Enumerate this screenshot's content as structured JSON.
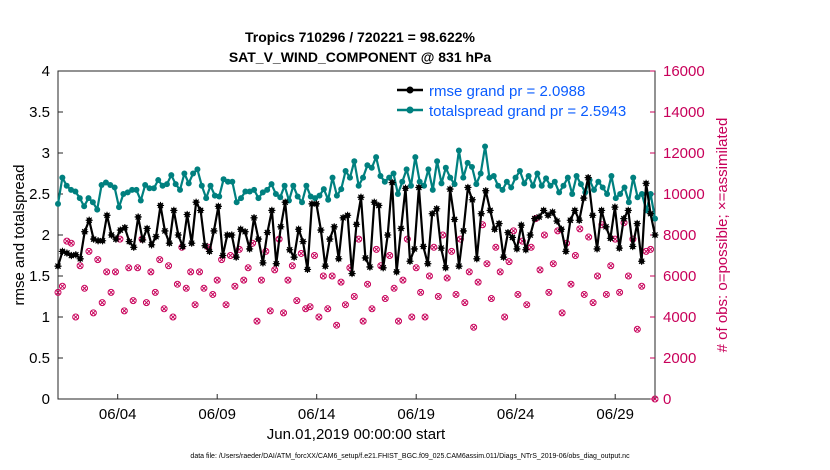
{
  "chart_data": {
    "type": "line",
    "title": "Tropics 710296 / 720221 = 98.622%",
    "subtitle": "SAT_V_WIND_COMPONENT @ 831 hPa",
    "xlabel": "Jun.01,2019 00:00:00 start",
    "ylabel": "rmse and totalspread",
    "y2label": "# of obs: o=possible; ×=assimilated",
    "x_ticks": [
      "06/04",
      "06/09",
      "06/14",
      "06/19",
      "06/24",
      "06/29"
    ],
    "y_ticks": [
      "0",
      "0.5",
      "1",
      "1.5",
      "2",
      "2.5",
      "3",
      "3.5",
      "4"
    ],
    "y2_ticks": [
      "0",
      "2000",
      "4000",
      "6000",
      "8000",
      "10000",
      "12000",
      "14000",
      "16000"
    ],
    "ylim": [
      0,
      4
    ],
    "y2lim": [
      0,
      16000
    ],
    "xlim": [
      1.0,
      31.0
    ],
    "series": [
      {
        "name": "rmse grand pr = 2.0988",
        "color": "#000000",
        "values": [
          1.62,
          1.8,
          1.78,
          1.75,
          1.76,
          1.71,
          2.04,
          2.18,
          1.95,
          1.93,
          1.93,
          2.24,
          2.0,
          1.95,
          2.06,
          2.09,
          1.92,
          1.85,
          2.22,
          1.94,
          2.08,
          1.88,
          1.98,
          2.36,
          2.05,
          1.9,
          2.3,
          2.0,
          1.86,
          2.25,
          1.9,
          2.4,
          2.3,
          1.87,
          1.8,
          2.05,
          2.35,
          1.75,
          2.0,
          2.0,
          1.73,
          2.07,
          2.04,
          1.83,
          2.21,
          1.95,
          1.66,
          2.03,
          2.3,
          1.65,
          2.1,
          2.4,
          1.82,
          1.73,
          2.07,
          1.92,
          1.58,
          2.38,
          2.38,
          2.06,
          1.62,
          1.95,
          2.1,
          1.71,
          2.21,
          2.24,
          1.53,
          2.13,
          2.46,
          1.72,
          1.61,
          2.4,
          2.36,
          1.6,
          2.0,
          2.64,
          1.55,
          2.08,
          2.57,
          1.68,
          1.83,
          2.58,
          1.86,
          1.65,
          2.26,
          2.32,
          1.84,
          1.6,
          2.56,
          2.19,
          1.62,
          2.05,
          2.58,
          2.43,
          1.71,
          2.26,
          2.54,
          2.3,
          2.07,
          2.14,
          1.73,
          2.03,
          1.97,
          1.83,
          2.12,
          1.82,
          2.0,
          2.2,
          2.22,
          2.3,
          2.24,
          2.28,
          2.17,
          2.07,
          1.8,
          2.18,
          2.3,
          2.18,
          2.45,
          2.7,
          2.24,
          1.83,
          2.3,
          2.1,
          1.96,
          2.34,
          1.84,
          2.2,
          2.3,
          1.86,
          2.14,
          1.68,
          2.63,
          2.26,
          2.0
        ]
      },
      {
        "name": "totalspread grand pr = 2.5943",
        "color": "#00807f",
        "values": [
          2.38,
          2.7,
          2.6,
          2.55,
          2.53,
          2.45,
          2.35,
          2.45,
          2.4,
          2.31,
          2.61,
          2.64,
          2.61,
          2.58,
          2.34,
          2.5,
          2.52,
          2.55,
          2.55,
          2.42,
          2.61,
          2.57,
          2.57,
          2.67,
          2.6,
          2.62,
          2.73,
          2.62,
          2.55,
          2.75,
          2.63,
          2.75,
          2.8,
          2.6,
          2.45,
          2.6,
          2.48,
          2.47,
          2.68,
          2.65,
          2.65,
          2.4,
          2.45,
          2.53,
          2.53,
          2.55,
          2.45,
          2.52,
          2.55,
          2.62,
          2.5,
          2.46,
          2.6,
          2.42,
          2.6,
          2.47,
          2.4,
          2.6,
          2.47,
          2.45,
          2.48,
          2.56,
          2.43,
          2.7,
          2.48,
          2.56,
          2.78,
          2.7,
          2.9,
          2.6,
          2.7,
          2.85,
          2.82,
          2.95,
          2.72,
          2.65,
          2.7,
          2.75,
          2.5,
          2.65,
          2.8,
          2.6,
          2.95,
          2.65,
          2.6,
          2.8,
          2.55,
          2.9,
          2.63,
          2.82,
          2.7,
          2.62,
          3.03,
          2.7,
          2.88,
          2.83,
          2.62,
          2.75,
          3.08,
          2.7,
          2.72,
          2.6,
          2.55,
          2.65,
          2.58,
          2.7,
          2.78,
          2.63,
          2.72,
          2.6,
          2.75,
          2.6,
          2.69,
          2.6,
          2.65,
          2.52,
          2.6,
          2.7,
          2.5,
          2.72,
          2.62,
          2.52,
          2.67,
          2.55,
          2.65,
          2.58,
          2.5,
          2.72,
          2.45,
          2.5,
          2.58,
          2.4,
          2.7,
          2.46,
          2.5,
          2.3,
          2.5,
          2.2
        ]
      },
      {
        "name": "# of obs possible",
        "color": "#c8005a",
        "values": [
          5200,
          5500,
          7700,
          7600,
          4000,
          6500,
          5400,
          7200,
          4200,
          6800,
          4700,
          6200,
          5200,
          6200,
          7800,
          4300,
          6400,
          4800,
          6400,
          7800,
          4700,
          6200,
          5200,
          6800,
          4400,
          6500,
          4000,
          5600,
          7400,
          5400,
          6200,
          4600,
          6200,
          5400,
          7400,
          5100,
          5800,
          6800,
          4600,
          7000,
          5500,
          7300,
          5800,
          6400,
          7600,
          3800,
          5800,
          7200,
          4300,
          6300,
          7800,
          4200,
          5800,
          6500,
          4800,
          7100,
          4400,
          4500,
          7000,
          4000,
          6000,
          4400,
          6000,
          3600,
          5700,
          4600,
          6400,
          5000,
          7800,
          3800,
          5600,
          4400,
          7300,
          6500,
          4900,
          7000,
          5400,
          3800,
          5800,
          7800,
          4000,
          6400,
          5200,
          4000,
          6000,
          7400,
          5000,
          8000,
          5900,
          7200,
          5100,
          7800,
          4700,
          6200,
          3500,
          5700,
          8500,
          6600,
          4900,
          7400,
          6200,
          4000,
          6700,
          8200,
          5100,
          7700,
          4600,
          7400,
          8800,
          6300,
          8000,
          5200,
          6600,
          8200,
          4200,
          7600,
          5600,
          7000,
          8300,
          5100,
          7900,
          4700,
          6000,
          8500,
          5100,
          6500,
          7800,
          5200,
          8600,
          6000,
          7800,
          3400,
          5500,
          7200,
          7300,
          0
        ]
      }
    ],
    "legend_location": "top-right"
  },
  "footer": "data file: /Users/raeder/DAI/ATM_forcXX/CAM6_setup/f.e21.FHIST_BGC.f09_025.CAM6assim.011/Diags_NTrS_2019-06/obs_diag_output.nc"
}
